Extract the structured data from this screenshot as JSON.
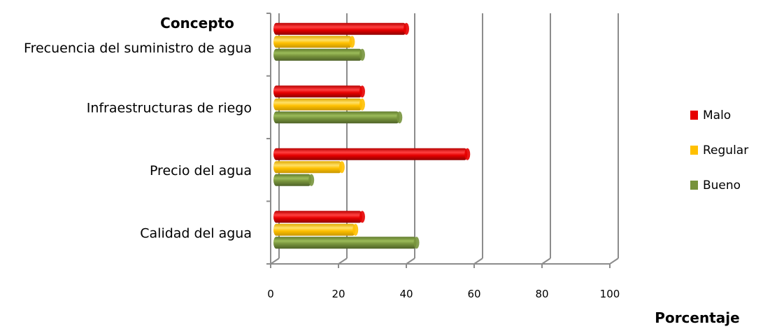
{
  "chart_data": {
    "type": "bar",
    "orientation": "horizontal",
    "title": "Concepto",
    "xlabel": "Porcentaje",
    "ylabel": "",
    "categories": [
      "Calidad del agua",
      "Precio del agua",
      "Infraestructuras de riego",
      "Frecuencia del suministro de agua"
    ],
    "series": [
      {
        "name": "Bueno",
        "values": [
          43,
          12,
          38,
          27
        ],
        "color": "#77933c"
      },
      {
        "name": "Regular",
        "values": [
          25,
          21,
          27,
          24
        ],
        "color": "#ffc000"
      },
      {
        "name": "Malo",
        "values": [
          27,
          58,
          27,
          40
        ],
        "color": "#e60000"
      }
    ],
    "xlim": [
      0,
      100
    ],
    "xticks": [
      0,
      20,
      40,
      60,
      80,
      100
    ],
    "grid": true,
    "legend_position": "right",
    "legend_order": [
      "Malo",
      "Regular",
      "Bueno"
    ]
  }
}
